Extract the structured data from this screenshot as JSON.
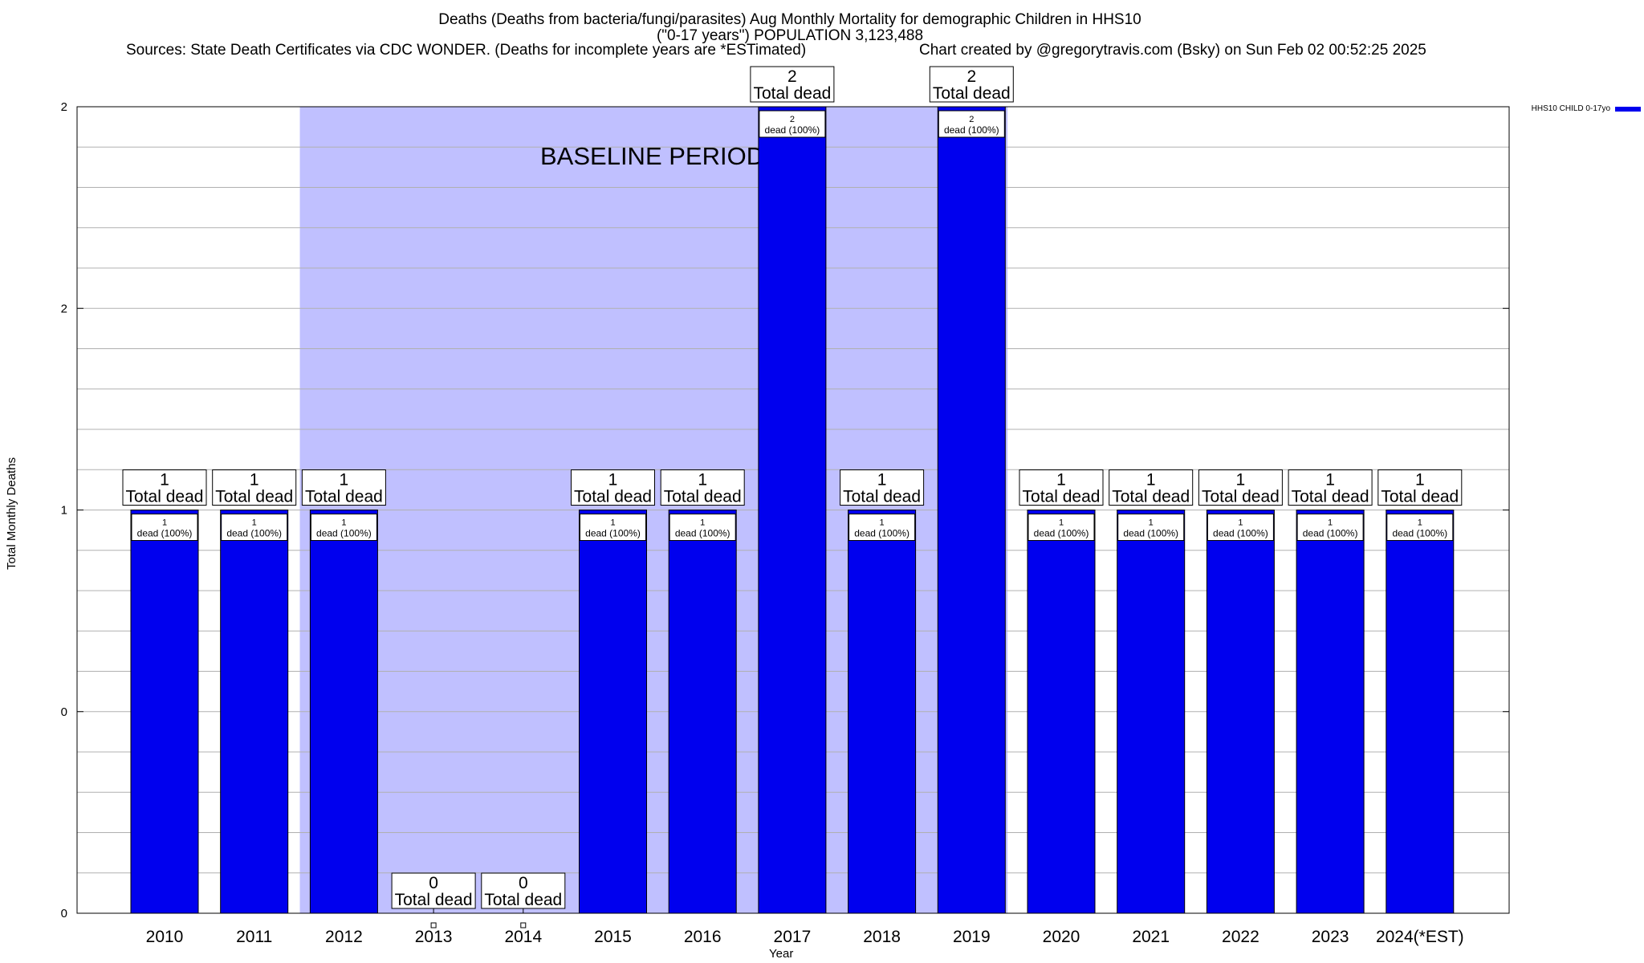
{
  "chart_data": {
    "type": "bar",
    "title_line1": "Deaths (Deaths from bacteria/fungi/parasites) Aug Monthly Mortality for demographic Children in HHS10",
    "title_line2": "(\"0-17 years\") POPULATION 3,123,488",
    "sources": "Sources: State Death Certificates via CDC WONDER. (Deaths for incomplete years are *ESTimated)",
    "credit": "Chart created by @gregorytravis.com (Bsky) on Sun Feb 02 00:52:25 2025",
    "xlabel": "Year",
    "ylabel": "Total Monthly Deaths",
    "categories": [
      "2010",
      "2011",
      "2012",
      "2013",
      "2014",
      "2015",
      "2016",
      "2017",
      "2018",
      "2019",
      "2020",
      "2021",
      "2022",
      "2023",
      "2024(*EST)"
    ],
    "series": [
      {
        "name": "HHS10 CHILD 0-17yo",
        "values": [
          1,
          1,
          1,
          0,
          0,
          1,
          1,
          2,
          1,
          2,
          1,
          1,
          1,
          1,
          1
        ],
        "color": "#0000ee"
      }
    ],
    "ylim": [
      0,
      2
    ],
    "ytick_labels": [
      "0",
      "0",
      "1",
      "2",
      "2"
    ],
    "total_label_text": "Total dead",
    "inner_label_suffix": "dead (100%)",
    "baseline": {
      "label": "BASELINE PERIOD",
      "start": "2012",
      "end": "2019",
      "color": "#c0c0ff"
    },
    "grid": true,
    "legend_position": "top-right"
  }
}
